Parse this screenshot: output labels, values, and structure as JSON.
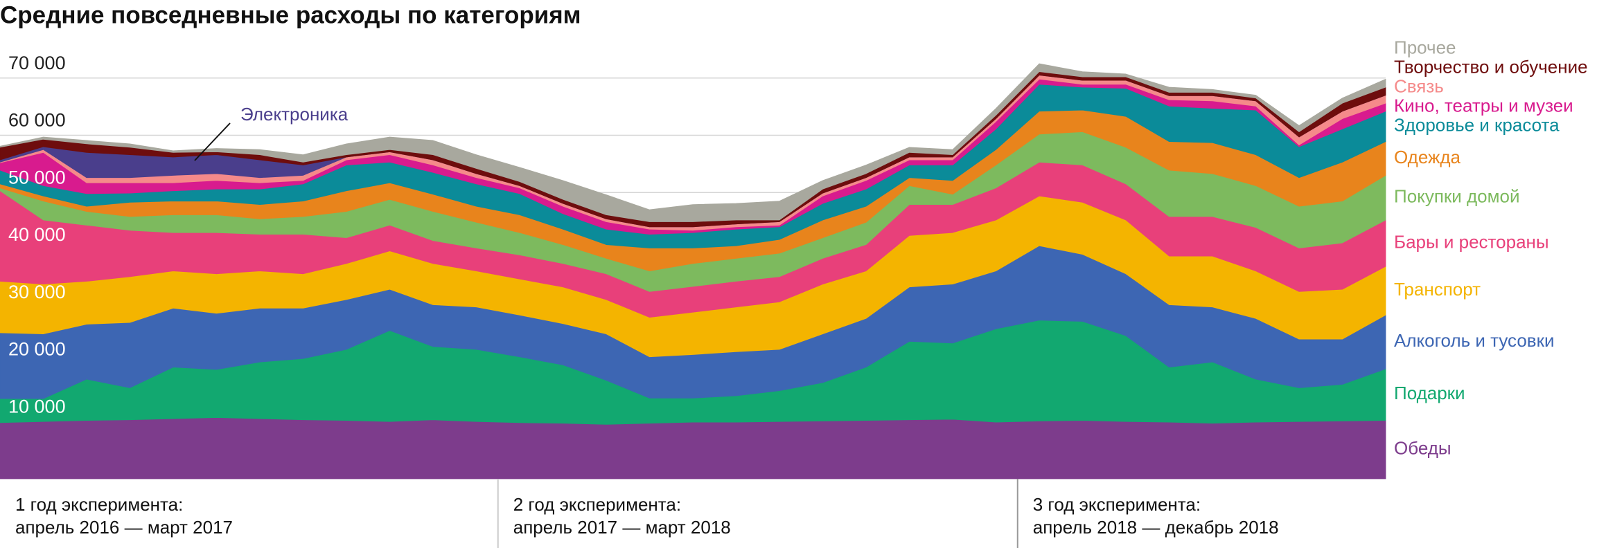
{
  "chart_data": {
    "type": "stacked_area",
    "title": "Средние повседневные расходы по категориям",
    "categories": [
      null,
      null,
      null,
      null,
      null,
      null,
      null,
      null,
      null,
      null,
      null,
      null,
      null,
      null,
      null,
      null,
      null,
      null,
      null,
      null,
      null,
      null,
      null,
      null,
      null,
      null,
      null,
      null,
      null,
      null,
      null,
      null,
      null
    ],
    "ylim": [
      0,
      80000
    ],
    "yticks": [
      {
        "value": 10000,
        "label": "10 000"
      },
      {
        "value": 20000,
        "label": "20 000"
      },
      {
        "value": 30000,
        "label": "30 000"
      },
      {
        "value": 40000,
        "label": "40 000"
      },
      {
        "value": 50000,
        "label": "50 000"
      },
      {
        "value": 60000,
        "label": "60 000"
      },
      {
        "value": 70000,
        "label": "70 000"
      }
    ],
    "grid": true,
    "series": [
      {
        "name": "Обеды",
        "color": "#7d3c8c",
        "values": [
          9800,
          10000,
          10200,
          10300,
          10500,
          10700,
          10500,
          10300,
          10200,
          10000,
          10300,
          10000,
          9800,
          9700,
          9500,
          9700,
          9900,
          9900,
          10000,
          10100,
          10200,
          10300,
          10400,
          9900,
          10100,
          10200,
          10000,
          9900,
          9700,
          9900,
          10000,
          10100,
          10200
        ]
      },
      {
        "name": "Подарки",
        "color": "#12a870",
        "values": [
          4200,
          4000,
          7200,
          5600,
          9000,
          8400,
          9900,
          10700,
          12400,
          15900,
          12800,
          12600,
          11500,
          10200,
          7700,
          4400,
          4200,
          4600,
          5400,
          6700,
          9300,
          13700,
          13300,
          16300,
          17600,
          17300,
          15000,
          9600,
          10700,
          7500,
          5900,
          6400,
          9000
        ]
      },
      {
        "name": "Алкоголь и тусовки",
        "color": "#3d66b3",
        "values": [
          11500,
          11300,
          9600,
          11400,
          10300,
          9800,
          9400,
          8800,
          8700,
          7200,
          7300,
          7400,
          7300,
          7200,
          8100,
          7200,
          7600,
          7700,
          7200,
          8500,
          8500,
          9500,
          10300,
          10100,
          13000,
          11700,
          10800,
          10900,
          9600,
          10600,
          8500,
          7900,
          9400
        ]
      },
      {
        "name": "Транспорт",
        "color": "#f4b400",
        "values": [
          9000,
          8700,
          7500,
          8000,
          6500,
          6900,
          6500,
          6000,
          6300,
          6700,
          7200,
          6300,
          6300,
          6400,
          6000,
          6900,
          7400,
          7800,
          8300,
          8700,
          8300,
          9000,
          9000,
          8900,
          8700,
          9100,
          9400,
          8500,
          8900,
          8300,
          8300,
          8700,
          8500
        ]
      },
      {
        "name": "Бары и рестораны",
        "color": "#e8407a",
        "values": [
          15800,
          11200,
          9800,
          8100,
          6700,
          7200,
          6400,
          6900,
          4500,
          4500,
          4000,
          4000,
          4200,
          4100,
          4500,
          4500,
          4500,
          4500,
          4400,
          4500,
          4600,
          5400,
          4900,
          5600,
          5900,
          6500,
          6300,
          6900,
          6900,
          7600,
          7600,
          8100,
          8100
        ]
      },
      {
        "name": "Покупки домой",
        "color": "#7dba5e",
        "values": [
          500,
          3300,
          2400,
          2400,
          3100,
          3100,
          2700,
          3100,
          4600,
          4500,
          5100,
          4500,
          3900,
          3300,
          2700,
          3600,
          4000,
          4000,
          4100,
          3600,
          3900,
          3300,
          1800,
          4000,
          4900,
          5800,
          6400,
          8100,
          7500,
          7300,
          7300,
          7300,
          7800
        ]
      },
      {
        "name": "Одежда",
        "color": "#e8841c",
        "values": [
          700,
          900,
          900,
          2500,
          2400,
          2400,
          2500,
          2700,
          3600,
          2900,
          3000,
          2800,
          3100,
          2700,
          2400,
          4000,
          2700,
          2200,
          2400,
          3100,
          2800,
          1400,
          2400,
          2700,
          4000,
          3800,
          5400,
          5000,
          5400,
          5400,
          5000,
          6800,
          5900
        ]
      },
      {
        "name": "Здоровье и красота",
        "color": "#0b8b99",
        "values": [
          2400,
          1800,
          2200,
          1600,
          1800,
          2100,
          2700,
          3000,
          4500,
          3600,
          3800,
          3900,
          3700,
          2700,
          2700,
          2400,
          2700,
          2900,
          2200,
          2900,
          3000,
          2200,
          2700,
          3600,
          4700,
          4000,
          4900,
          6200,
          6000,
          7800,
          5400,
          5800,
          5300
        ]
      },
      {
        "name": "Кино, театры и музеи",
        "color": "#d81b8e",
        "values": [
          1300,
          5800,
          1900,
          1800,
          1400,
          1500,
          1100,
          600,
          900,
          1300,
          1300,
          1100,
          1000,
          1300,
          1300,
          900,
          400,
          400,
          300,
          1300,
          1500,
          900,
          900,
          1300,
          900,
          500,
          700,
          1100,
          1300,
          700,
          300,
          1800,
          1400
        ]
      },
      {
        "name": "Связь",
        "color": "#f58a8a",
        "values": [
          100,
          500,
          900,
          900,
          1300,
          1200,
          900,
          900,
          500,
          500,
          900,
          700,
          400,
          500,
          500,
          400,
          600,
          500,
          600,
          500,
          500,
          500,
          500,
          500,
          700,
          700,
          700,
          700,
          900,
          900,
          1400,
          1300,
          1400
        ]
      },
      {
        "name": "Электроника",
        "color": "#4a3e8c",
        "values": [
          400,
          500,
          4400,
          4000,
          3200,
          3300,
          3100,
          1800,
          0,
          0,
          0,
          0,
          0,
          0,
          0,
          0,
          0,
          0,
          0,
          0,
          0,
          0,
          0,
          0,
          0,
          0,
          0,
          0,
          0,
          0,
          0,
          0,
          0
        ]
      },
      {
        "name": "Творчество и обучение",
        "color": "#6e0d0d",
        "values": [
          2200,
          1300,
          1500,
          1300,
          800,
          500,
          900,
          500,
          400,
          400,
          900,
          900,
          700,
          700,
          700,
          900,
          900,
          700,
          300,
          700,
          700,
          800,
          400,
          600,
          600,
          600,
          600,
          600,
          600,
          500,
          900,
          1400,
          1400
        ]
      },
      {
        "name": "Прочее",
        "color": "#a8a89e",
        "values": [
          200,
          400,
          600,
          600,
          300,
          600,
          900,
          1300,
          1900,
          2200,
          2500,
          2400,
          2500,
          3300,
          3500,
          2100,
          3000,
          2900,
          3300,
          1500,
          1500,
          900,
          900,
          1200,
          1400,
          900,
          500,
          900,
          500,
          500,
          1100,
          900,
          1400
        ]
      }
    ],
    "periods": [
      {
        "title": "1 год эксперимента:",
        "range": "апрель 2016 — март 2017"
      },
      {
        "title": "2 год эксперимента:",
        "range": "апрель 2017 — март 2018"
      },
      {
        "title": "3 год эксперимента:",
        "range": "апрель 2018 — декабрь 2018"
      }
    ]
  }
}
